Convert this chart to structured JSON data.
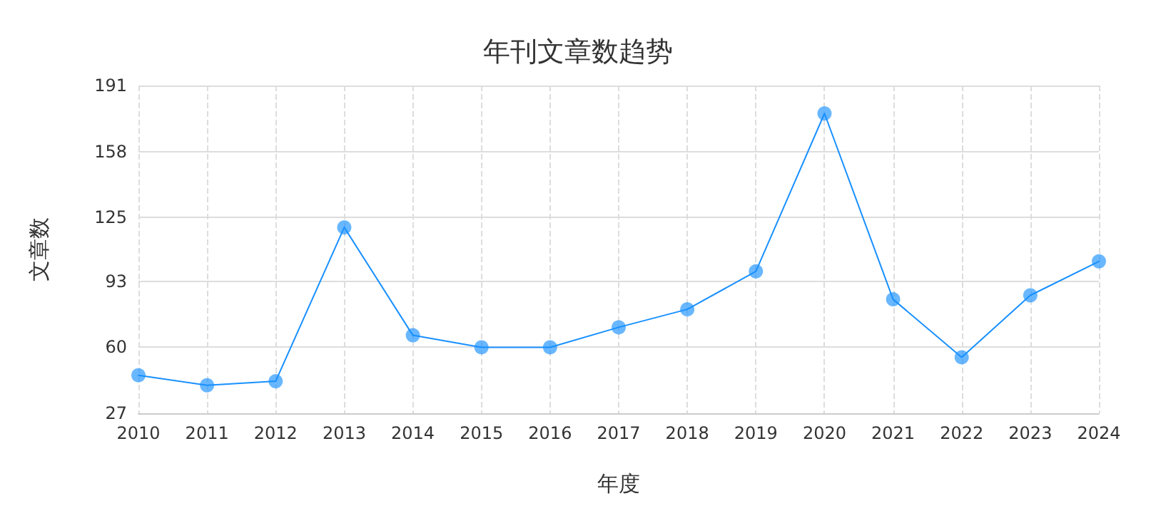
{
  "chart_data": {
    "type": "line",
    "title": "年刊文章数趋势",
    "xlabel": "年度",
    "ylabel": "文章数",
    "categories": [
      "2010",
      "2011",
      "2012",
      "2013",
      "2014",
      "2015",
      "2016",
      "2017",
      "2018",
      "2019",
      "2020",
      "2021",
      "2022",
      "2023",
      "2024"
    ],
    "series": [
      {
        "color": "#1890ff",
        "values": [
          46,
          41,
          43,
          120,
          66,
          60,
          60,
          70,
          79,
          98,
          177,
          84,
          55,
          86,
          103
        ]
      }
    ],
    "ylim": [
      27,
      191
    ],
    "yticks": [
      27,
      60,
      93,
      125,
      158,
      191
    ],
    "grid": true,
    "marker": "circle",
    "line_style": "solid"
  }
}
